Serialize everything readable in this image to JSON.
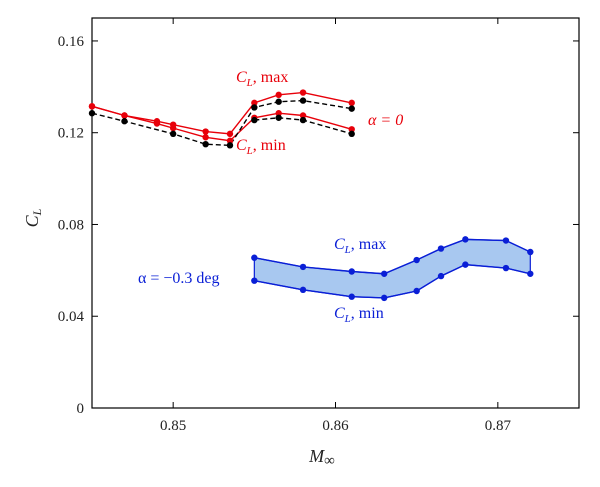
{
  "chart_data": {
    "type": "line",
    "xlabel": "M",
    "xlabel_sub": "∞",
    "ylabel": "C",
    "ylabel_sub": "L",
    "xlim": [
      0.845,
      0.875
    ],
    "ylim": [
      0,
      0.17
    ],
    "xticks": [
      0.85,
      0.86,
      0.87
    ],
    "xtick_labels": [
      "0.85",
      "0.86",
      "0.87"
    ],
    "yticks": [
      0,
      0.04,
      0.08,
      0.12,
      0.16
    ],
    "ytick_labels": [
      "0",
      "0.04",
      "0.08",
      "0.12",
      "0.16"
    ],
    "grid": false,
    "colors": {
      "red": "#e8000a",
      "blue": "#0a1fd6",
      "band": "#a8c8f0",
      "black": "#000000"
    },
    "groups": [
      {
        "label": "α = 0",
        "color": "#e8000a",
        "series": [
          {
            "x": [
              0.845,
              0.847,
              0.849,
              0.85,
              0.852,
              0.8535,
              0.855,
              0.8565,
              0.858,
              0.861
            ],
            "y": [
              0.1315,
              0.1275,
              0.125,
              0.1235,
              0.1205,
              0.1195,
              0.133,
              0.1365,
              0.1375,
              0.133
            ],
            "label_prefix": "C",
            "label_sub": "L",
            "label_suffix": ", max",
            "style": "solid",
            "color": "#e8000a"
          },
          {
            "x": [
              0.845,
              0.847,
              0.849,
              0.85,
              0.852,
              0.8535,
              0.855,
              0.8565,
              0.858,
              0.861
            ],
            "y": [
              0.1315,
              0.1275,
              0.124,
              0.122,
              0.118,
              0.1165,
              0.1265,
              0.1285,
              0.1275,
              0.1215
            ],
            "label_prefix": "C",
            "label_sub": "L",
            "label_suffix": ", min",
            "style": "solid",
            "color": "#e8000a"
          },
          {
            "x": [
              0.845,
              0.847,
              0.85,
              0.852,
              0.8535,
              0.855,
              0.8565,
              0.858,
              0.861
            ],
            "y": [
              0.1285,
              0.125,
              0.1195,
              0.115,
              0.1145,
              0.131,
              0.1335,
              0.134,
              0.1305
            ],
            "style": "dashed",
            "color": "#000000"
          },
          {
            "x": [
              0.855,
              0.8565,
              0.858,
              0.861
            ],
            "y": [
              0.1255,
              0.1265,
              0.1255,
              0.1195
            ],
            "style": "dashed",
            "color": "#000000"
          }
        ]
      },
      {
        "label": "α = −0.3 deg",
        "color": "#0a1fd6",
        "band": true,
        "series": [
          {
            "x": [
              0.855,
              0.858,
              0.861,
              0.863,
              0.865,
              0.8665,
              0.868,
              0.8705,
              0.872
            ],
            "y": [
              0.0655,
              0.0615,
              0.0595,
              0.0585,
              0.0645,
              0.0695,
              0.0735,
              0.073,
              0.068
            ],
            "label_prefix": "C",
            "label_sub": "L",
            "label_suffix": ", max",
            "style": "solid",
            "color": "#0a1fd6"
          },
          {
            "x": [
              0.855,
              0.858,
              0.861,
              0.863,
              0.865,
              0.8665,
              0.868,
              0.8705,
              0.872
            ],
            "y": [
              0.0555,
              0.0515,
              0.0485,
              0.048,
              0.051,
              0.0575,
              0.0625,
              0.061,
              0.0585
            ],
            "label_prefix": "C",
            "label_sub": "L",
            "label_suffix": ", min",
            "style": "solid",
            "color": "#0a1fd6"
          }
        ]
      }
    ]
  }
}
